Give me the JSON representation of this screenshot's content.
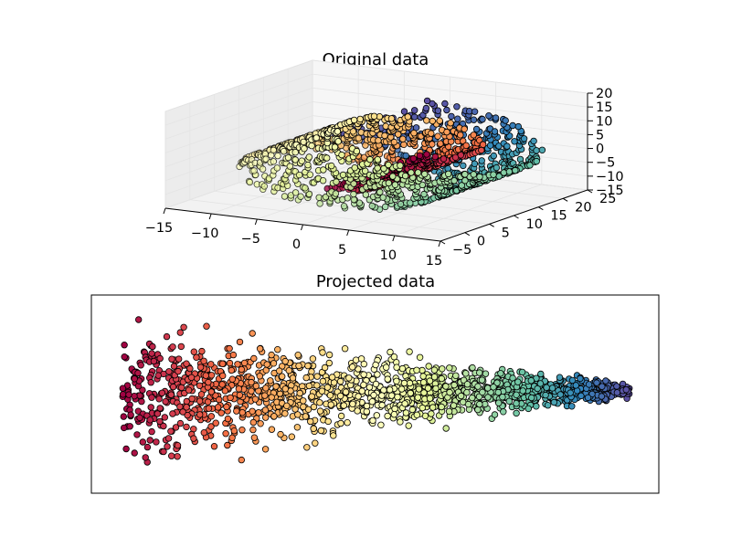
{
  "chart_data": [
    {
      "type": "scatter",
      "subtype": "3d",
      "title": "Original data",
      "description_series": "swiss roll manifold point cloud colored by position along the roll (Spectral colormap)",
      "colormap": [
        "#9e0142",
        "#d53e4f",
        "#f46d43",
        "#fdae61",
        "#fee08b",
        "#ffffbf",
        "#e6f598",
        "#abdda4",
        "#66c2a5",
        "#3288bd",
        "#5e4fa2"
      ],
      "x_ticks": [
        "−15",
        "−10",
        "−5",
        "0",
        "5",
        "10",
        "15"
      ],
      "y_ticks": [
        "−5",
        "0",
        "5",
        "10",
        "15",
        "20",
        "25"
      ],
      "z_ticks": [
        "−15",
        "−10",
        "−5",
        "0",
        "5",
        "10",
        "15",
        "20"
      ],
      "xlim": [
        -15,
        15
      ],
      "ylim": [
        -5,
        25
      ],
      "zlim": [
        -15,
        20
      ],
      "grid": true,
      "n_points": 1500
    },
    {
      "type": "scatter",
      "title": "Projected data",
      "description_series": "2D embedding of the swiss roll; color runs from red (left) to purple (right)",
      "x_range": [
        0,
        1
      ],
      "y_range": [
        -1,
        1
      ],
      "axis_ticks": false,
      "n_points": 1500
    }
  ]
}
